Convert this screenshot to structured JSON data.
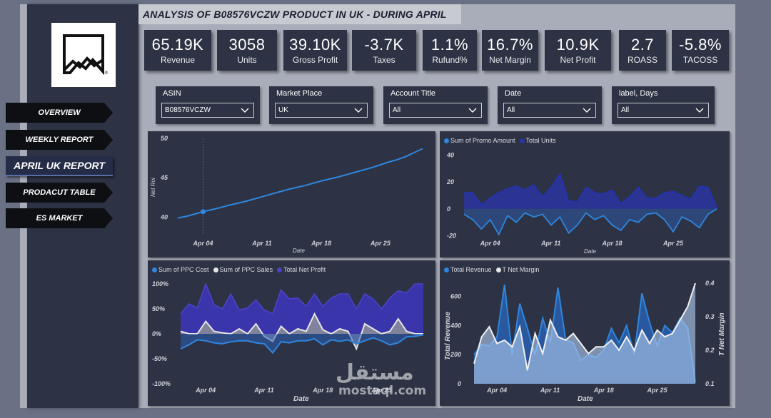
{
  "title": "ANALYSIS OF B08576VCZW PRODUCT IN UK - DURING APRIL",
  "logo_icon": "mountain-logo-icon",
  "nav": [
    {
      "label": "OVERVIEW"
    },
    {
      "label": "WEEKLY REPORT"
    },
    {
      "label": "APRIL UK REPORT"
    },
    {
      "label": "PRODACUT TABLE"
    },
    {
      "label": "ES MARKET"
    }
  ],
  "kpis": [
    {
      "value": "65.19K",
      "label": "Revenue"
    },
    {
      "value": "3058",
      "label": "Units"
    },
    {
      "value": "39.10K",
      "label": "Gross Profit"
    },
    {
      "value": "-3.7K",
      "label": "Taxes"
    },
    {
      "value": "1.1%",
      "label": "Rufund%"
    },
    {
      "value": "16.7%",
      "label": "Net Margin"
    },
    {
      "value": "10.9K",
      "label": "Net Profit"
    },
    {
      "value": "2.7",
      "label": "ROASS"
    },
    {
      "value": "-5.8%",
      "label": "TACOSS"
    }
  ],
  "filters": [
    {
      "label": "ASIN",
      "value": "B08576VCZW"
    },
    {
      "label": "Market Place",
      "value": "UK"
    },
    {
      "label": "Account Title",
      "value": "All"
    },
    {
      "label": "Date",
      "value": "All"
    },
    {
      "label": "label, Days",
      "value": "All"
    }
  ],
  "colors": {
    "panel": "#2d3344",
    "blue": "#2e86de",
    "navy": "#2a34a8",
    "purple": "#4b43c8",
    "white": "#e6e6e6",
    "lightblue": "#a9c4e8"
  },
  "watermark": {
    "arabic": "مستقل",
    "latin": "mostaql.com"
  },
  "chart_data": [
    {
      "type": "line",
      "title": "",
      "xlabel": "Date",
      "ylabel": "Net Roi",
      "x_ticks": [
        "Apr 04",
        "Apr 11",
        "Apr 18",
        "Apr 25"
      ],
      "y_ticks": [
        "40",
        "45",
        "50"
      ],
      "ylim": [
        39.5,
        50
      ],
      "series": [
        {
          "name": "Net Roi",
          "values": [
            39.9,
            40.1,
            40.4,
            40.7,
            40.95,
            41.2,
            41.5,
            41.75,
            42.0,
            42.3,
            42.6,
            42.9,
            43.2,
            43.5,
            43.75,
            44.0,
            44.3,
            44.6,
            44.85,
            45.1,
            45.4,
            45.7,
            46.0,
            46.3,
            46.65,
            47.0,
            47.3,
            47.7,
            48.2,
            48.7
          ]
        }
      ]
    },
    {
      "type": "area",
      "title": "",
      "xlabel": "Date",
      "ylabel": "",
      "x_ticks": [
        "Apr 04",
        "Apr 11",
        "Apr 18",
        "Apr 25"
      ],
      "y_ticks": [
        "-20",
        "0",
        "20",
        "40"
      ],
      "ylim": [
        -25,
        45
      ],
      "series": [
        {
          "name": "Sum of Promo Amount",
          "values": [
            -4,
            -8,
            -15,
            -8,
            -19,
            -5,
            -10,
            -3,
            -6,
            -4,
            -12,
            -6,
            -18,
            -12,
            -3,
            -8,
            -5,
            -12,
            -16,
            -8,
            -10,
            -4,
            -3,
            -8,
            -17,
            -6,
            -9,
            -14,
            -4,
            0
          ]
        },
        {
          "name": "Total Units",
          "values": [
            12,
            12,
            3,
            8,
            12,
            15,
            17,
            14,
            18,
            9,
            16,
            26,
            6,
            5,
            16,
            12,
            11,
            14,
            4,
            9,
            16,
            8,
            8,
            12,
            13,
            10,
            7,
            17,
            16,
            1
          ]
        }
      ]
    },
    {
      "type": "area",
      "title": "",
      "xlabel": "Date",
      "ylabel": "",
      "x_ticks": [
        "Apr 04",
        "Apr 11",
        "Apr 18",
        "Apr 25"
      ],
      "y_ticks": [
        "100%",
        "50%",
        "0%",
        "-50%",
        "-100%"
      ],
      "ylim": [
        -100,
        100
      ],
      "series": [
        {
          "name": "Sum of PPC Cost",
          "values": [
            -30,
            -22,
            -12,
            -14,
            -18,
            -20,
            -16,
            -14,
            -14,
            -18,
            -20,
            -38,
            -16,
            -18,
            -14,
            -14,
            -10,
            -22,
            -12,
            -15,
            -12,
            -20,
            -14,
            -8,
            -14,
            -22,
            -18,
            -6,
            -5,
            -2
          ]
        },
        {
          "name": "Sum of PPC Sales",
          "values": [
            5,
            0,
            0,
            25,
            5,
            2,
            0,
            10,
            0,
            20,
            -5,
            -15,
            15,
            0,
            10,
            5,
            40,
            8,
            0,
            10,
            5,
            -30,
            20,
            10,
            0,
            5,
            30,
            5,
            0,
            0
          ]
        },
        {
          "name": "Total Net Profit",
          "values": [
            40,
            60,
            52,
            100,
            58,
            50,
            80,
            48,
            52,
            68,
            48,
            40,
            88,
            70,
            72,
            55,
            80,
            55,
            72,
            80,
            80,
            50,
            80,
            70,
            50,
            72,
            86,
            82,
            100,
            100
          ]
        }
      ]
    },
    {
      "type": "line",
      "title": "",
      "xlabel": "Date",
      "ylabel": "Total Revenue",
      "ylabel_right": "T Net Margin",
      "x_ticks": [
        "Apr 04",
        "Apr 11",
        "Apr 18",
        "Apr 25"
      ],
      "y_ticks": [
        "0",
        "200",
        "400",
        "600"
      ],
      "y2_ticks": [
        "0.1",
        "0.2",
        "0.3",
        "0.4"
      ],
      "ylim": [
        0,
        700
      ],
      "y2lim": [
        0.1,
        0.4
      ],
      "series": [
        {
          "name": "Total Revenue",
          "values": [
            200,
            270,
            260,
            320,
            680,
            200,
            550,
            380,
            200,
            450,
            280,
            660,
            300,
            280,
            160,
            200,
            180,
            230,
            380,
            280,
            400,
            200,
            620,
            420,
            260,
            400,
            350,
            450,
            380,
            10
          ]
        },
        {
          "name": "T Net Margin",
          "values": [
            0.16,
            0.24,
            0.27,
            0.22,
            0.23,
            0.21,
            0.27,
            0.14,
            0.25,
            0.19,
            0.29,
            0.24,
            0.23,
            0.25,
            0.22,
            0.19,
            0.21,
            0.21,
            0.23,
            0.2,
            0.24,
            0.2,
            0.26,
            0.22,
            0.26,
            0.24,
            0.25,
            0.29,
            0.33,
            0.4
          ]
        }
      ]
    }
  ]
}
